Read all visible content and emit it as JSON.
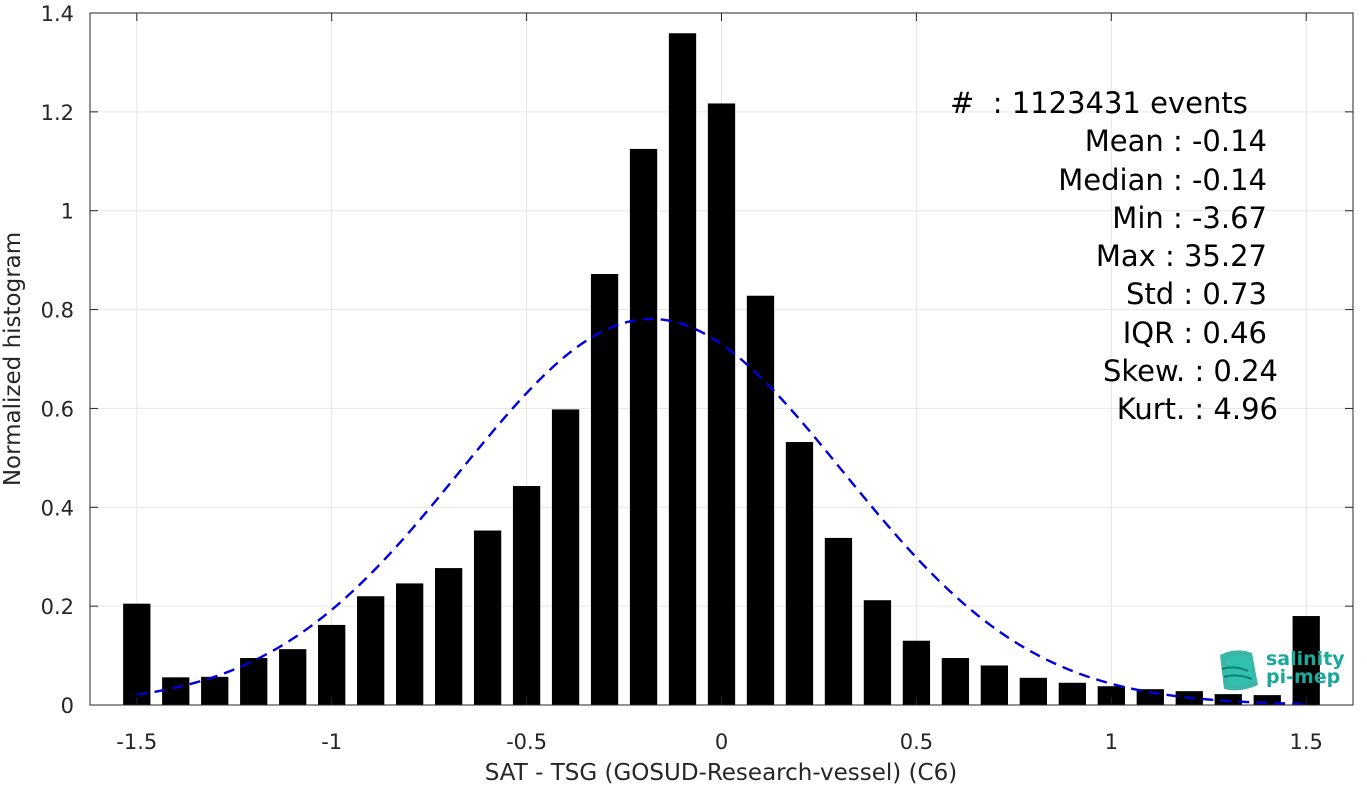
{
  "chart_data": {
    "type": "bar",
    "xlabel": "SAT - TSG (GOSUD-Research-vessel) (C6)",
    "ylabel": "Normalized histogram",
    "xlim": [
      -1.62,
      1.62
    ],
    "ylim": [
      0,
      1.4
    ],
    "xticks": [
      -1.5,
      -1,
      -0.5,
      0,
      0.5,
      1,
      1.5
    ],
    "xtick_labels": [
      "-1.5",
      "-1",
      "-0.5",
      "0",
      "0.5",
      "1",
      "1.5"
    ],
    "yticks": [
      0,
      0.2,
      0.4,
      0.6,
      0.8,
      1,
      1.2,
      1.4
    ],
    "ytick_labels": [
      "0",
      "0.2",
      "0.4",
      "0.6",
      "0.8",
      "1",
      "1.2",
      "1.4"
    ],
    "grid": true,
    "bar_width": 0.07,
    "x": [
      -1.5,
      -1.4,
      -1.3,
      -1.2,
      -1.1,
      -1.0,
      -0.9,
      -0.8,
      -0.7,
      -0.6,
      -0.5,
      -0.4,
      -0.3,
      -0.2,
      -0.1,
      0.0,
      0.1,
      0.2,
      0.3,
      0.4,
      0.5,
      0.6,
      0.7,
      0.8,
      0.9,
      1.0,
      1.1,
      1.2,
      1.3,
      1.4,
      1.5
    ],
    "values": [
      0.205,
      0.056,
      0.057,
      0.095,
      0.113,
      0.162,
      0.22,
      0.246,
      0.277,
      0.353,
      0.443,
      0.598,
      0.872,
      1.125,
      1.359,
      1.217,
      0.828,
      0.532,
      0.338,
      0.212,
      0.13,
      0.095,
      0.08,
      0.055,
      0.045,
      0.038,
      0.032,
      0.028,
      0.022,
      0.02,
      0.18
    ],
    "bar_color": "#000000",
    "fit": {
      "type": "gaussian",
      "mean": -0.18,
      "std": 0.49,
      "peak": 0.781,
      "color": "#0000dd",
      "style": "dashed",
      "x_range": [
        -1.5,
        1.5
      ]
    },
    "stats": [
      "#  : 1123431 events",
      "Mean : -0.14",
      "Median : -0.14",
      "Min : -3.67",
      "Max : 35.27",
      "Std : 0.73",
      "IQR : 0.46",
      "Skew. : 0.24",
      "Kurt. : 4.96"
    ]
  },
  "logo": {
    "line1": "salinity",
    "line2": "pi-mep",
    "color": "#19a99a"
  }
}
